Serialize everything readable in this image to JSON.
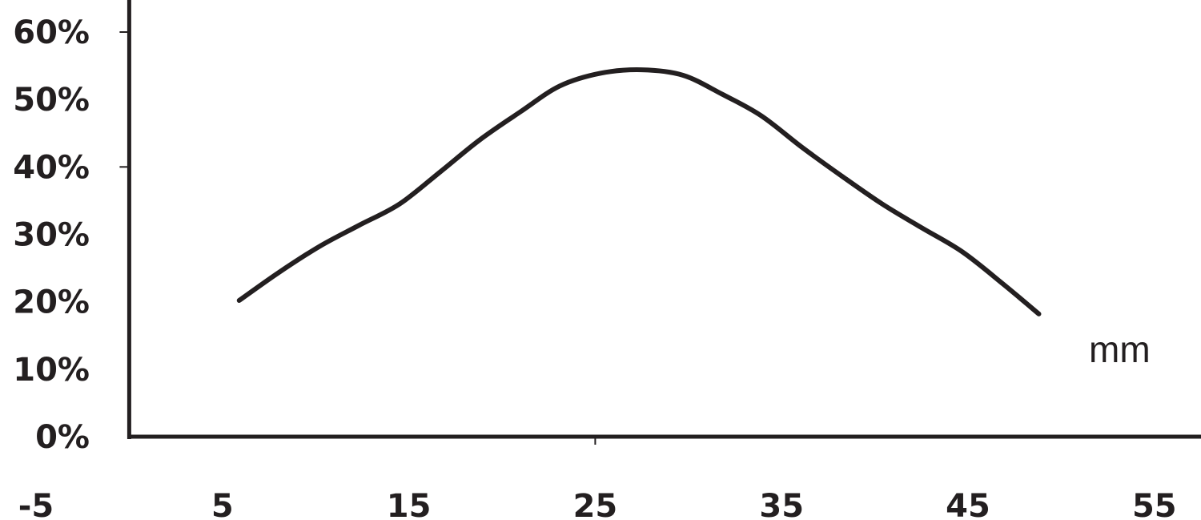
{
  "chart_data": {
    "type": "line",
    "title": "",
    "xlabel": "mm",
    "ylabel": "",
    "xlim": [
      -5,
      57.5
    ],
    "ylim": [
      0,
      60
    ],
    "x_ticks": [
      "-5",
      "5",
      "15",
      "25",
      "35",
      "45",
      "55"
    ],
    "x_tick_values": [
      -5,
      5,
      15,
      25,
      35,
      45,
      55
    ],
    "y_ticks": [
      "0%",
      "10%",
      "20%",
      "30%",
      "40%",
      "50%",
      "60%"
    ],
    "y_tick_values": [
      0,
      10,
      20,
      30,
      40,
      50,
      60
    ],
    "grid": false,
    "line_color": "#231f20",
    "series": [
      {
        "x": [
          5.9,
          8,
          10.2,
          12.3,
          14.5,
          16.7,
          18.8,
          21,
          23.1,
          25.3,
          27.5,
          29.7,
          31.8,
          33.9,
          36.1,
          38.2,
          40.4,
          42.5,
          44.7,
          46.9,
          48.8
        ],
        "y": [
          20.2,
          24.3,
          28.2,
          31.3,
          34.5,
          39.3,
          44,
          48.2,
          52,
          53.9,
          54.4,
          53.6,
          50.8,
          47.6,
          42.9,
          38.7,
          34.5,
          31,
          27.4,
          22.6,
          18.2
        ]
      }
    ]
  }
}
